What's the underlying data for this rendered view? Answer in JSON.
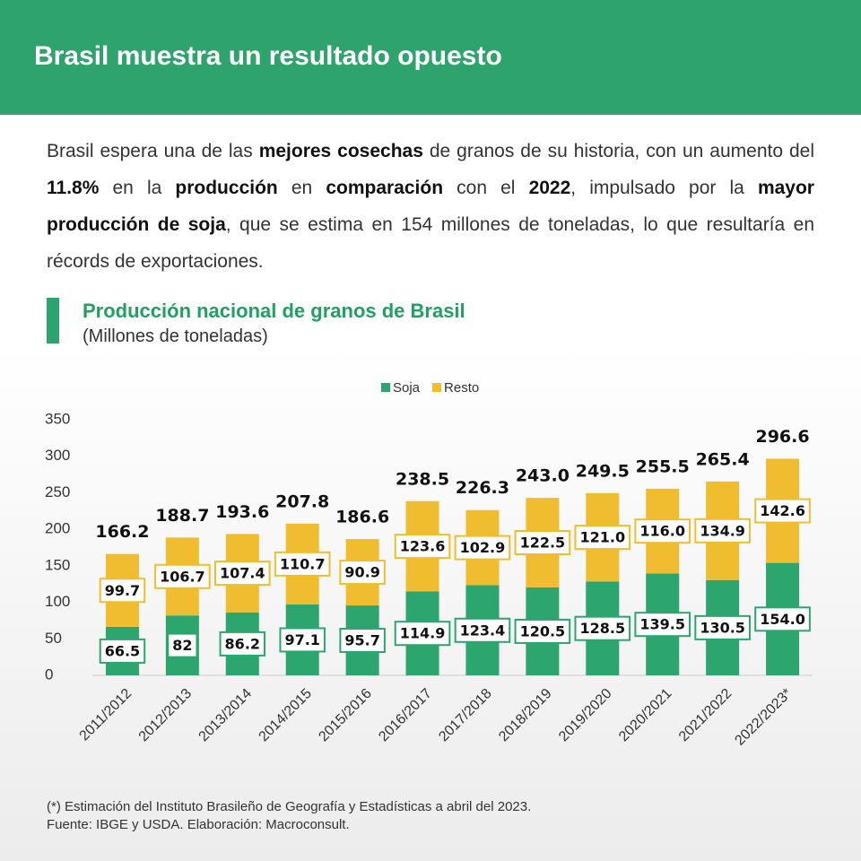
{
  "header": {
    "title": "Brasil muestra un resultado opuesto"
  },
  "paragraph": [
    {
      "text": "Brasil espera una de las ",
      "bold": false
    },
    {
      "text": "mejores cosechas",
      "bold": true
    },
    {
      "text": " de granos de su historia, con un aumento del ",
      "bold": false
    },
    {
      "text": "11.8%",
      "bold": true
    },
    {
      "text": " en la ",
      "bold": false
    },
    {
      "text": "producción",
      "bold": true
    },
    {
      "text": " en ",
      "bold": false
    },
    {
      "text": "comparación",
      "bold": true
    },
    {
      "text": " con el ",
      "bold": false
    },
    {
      "text": "2022",
      "bold": true
    },
    {
      "text": ", impulsado por la ",
      "bold": false
    },
    {
      "text": "mayor producción de soja",
      "bold": true
    },
    {
      "text": ", que se estima en 154 millones de toneladas, lo que resultaría en récords de exportaciones.",
      "bold": false
    }
  ],
  "chart_data": {
    "type": "stacked_bar",
    "title": "Producción nacional de granos de Brasil",
    "subtitle": "(Millones de toneladas)",
    "categories": [
      "2011/2012",
      "2012/2013",
      "2013/2014",
      "2014/2015",
      "2015/2016",
      "2016/2017",
      "2017/2018",
      "2018/2019",
      "2019/2020",
      "2020/2021",
      "2021/2022",
      "2022/2023*"
    ],
    "series": [
      {
        "name": "Soja",
        "color": "#2ca56e",
        "values": [
          66.5,
          82,
          86.2,
          97.1,
          95.7,
          114.9,
          123.4,
          120.5,
          128.5,
          139.5,
          130.5,
          154.0
        ],
        "value_labels": [
          "66.5",
          "82",
          "86.2",
          "97.1",
          "95.7",
          "114.9",
          "123.4",
          "120.5",
          "128.5",
          "139.5",
          "130.5",
          "154.0"
        ]
      },
      {
        "name": "Resto",
        "color": "#f1bd30",
        "values": [
          99.7,
          106.7,
          107.4,
          110.7,
          90.9,
          123.6,
          102.9,
          122.5,
          121.0,
          116.0,
          134.9,
          142.6
        ],
        "value_labels": [
          "99.7",
          "106.7",
          "107.4",
          "110.7",
          "90.9",
          "123.6",
          "102.9",
          "122.5",
          "121.0",
          "116.0",
          "134.9",
          "142.6"
        ]
      }
    ],
    "totals": [
      166.2,
      188.7,
      193.6,
      207.8,
      186.6,
      238.5,
      226.3,
      243.0,
      249.5,
      255.5,
      265.4,
      296.6
    ],
    "total_labels": [
      "166.2",
      "188.7",
      "193.6",
      "207.8",
      "186.6",
      "238.5",
      "226.3",
      "243.0",
      "249.5",
      "255.5",
      "265.4",
      "296.6"
    ],
    "ylim": [
      0,
      350
    ],
    "yticks": [
      0,
      50,
      100,
      150,
      200,
      250,
      300,
      350
    ],
    "grid": false,
    "legend": "top"
  },
  "footnotes": [
    "(*) Estimación del Instituto Brasileño de Geografía y Estadísticas a abril del 2023.",
    "Fuente: IBGE y USDA. Elaboración: Macroconsult."
  ]
}
